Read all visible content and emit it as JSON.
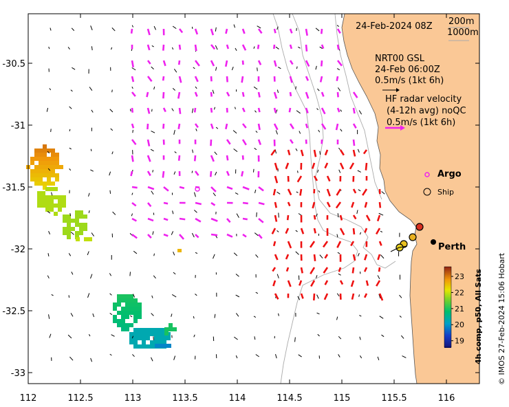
{
  "map": {
    "lon_range": [
      112,
      116.3
    ],
    "lat_range": [
      -33.1,
      -29.9
    ],
    "x_ticks": [
      "112",
      "112.5",
      "113",
      "113.5",
      "114",
      "114.5",
      "115",
      "115.5",
      "116"
    ],
    "y_ticks": [
      "-30.5",
      "-31",
      "-31.5",
      "-32",
      "-32.5",
      "-33"
    ],
    "land_color": "#fac896",
    "ocean_color": "#ffffff",
    "contour_color": "#aaaaaa"
  },
  "annotations": {
    "date_label": "24-Feb-2024 08Z",
    "depth_label_1": "200m",
    "depth_label_2": "1000m",
    "gsl_line1": "NRT00 GSL",
    "gsl_line2": "24-Feb 06:00Z",
    "gsl_line3": "0.5m/s (1kt 6h)",
    "hf_line1": "HF radar velocity",
    "hf_line2": "(4-12h avg) noQC",
    "hf_line3": "0.5m/s (1kt 6h)",
    "argo_label": "Argo",
    "ship_label": "Ship",
    "city_label": "Perth"
  },
  "colorbar": {
    "title": "4h comp, p50, All Sats",
    "ticks": [
      "23",
      "22",
      "21",
      "20",
      "19"
    ],
    "range": [
      18.6,
      23.6
    ]
  },
  "credit": "© IMOS 27-Feb-2024 15:06 Hobart",
  "colors": {
    "gsl_arrows": "#ee22ee",
    "hf_arrows": "#ee1111",
    "argo": "#ee22ee"
  }
}
